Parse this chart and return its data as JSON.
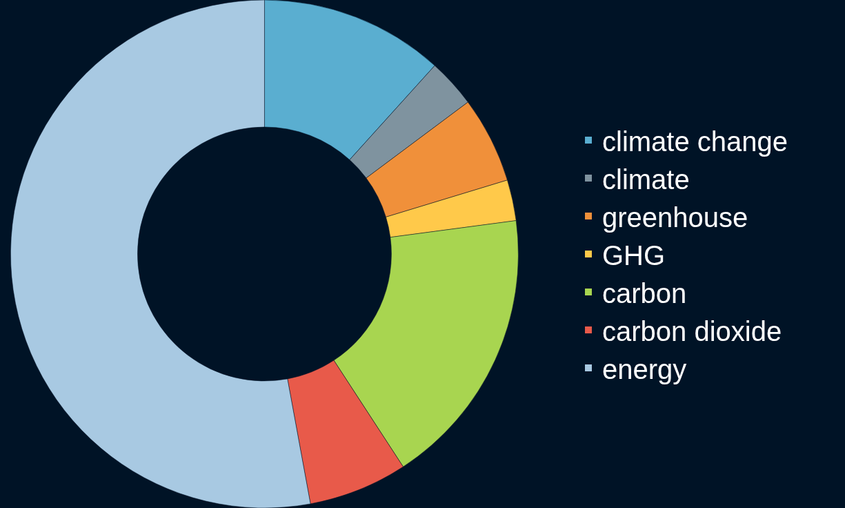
{
  "chart_data": {
    "type": "donut",
    "categories": [
      "climate change",
      "climate",
      "greenhouse",
      "GHG",
      "carbon",
      "carbon dioxide",
      "energy"
    ],
    "values": [
      11.7,
      3.1,
      5.5,
      2.6,
      17.9,
      6.3,
      52.9
    ],
    "colors": [
      "#5aaed0",
      "#7f939f",
      "#f0903a",
      "#ffc94a",
      "#a8d550",
      "#e85a4a",
      "#a8c9e2"
    ],
    "legend": "right"
  }
}
